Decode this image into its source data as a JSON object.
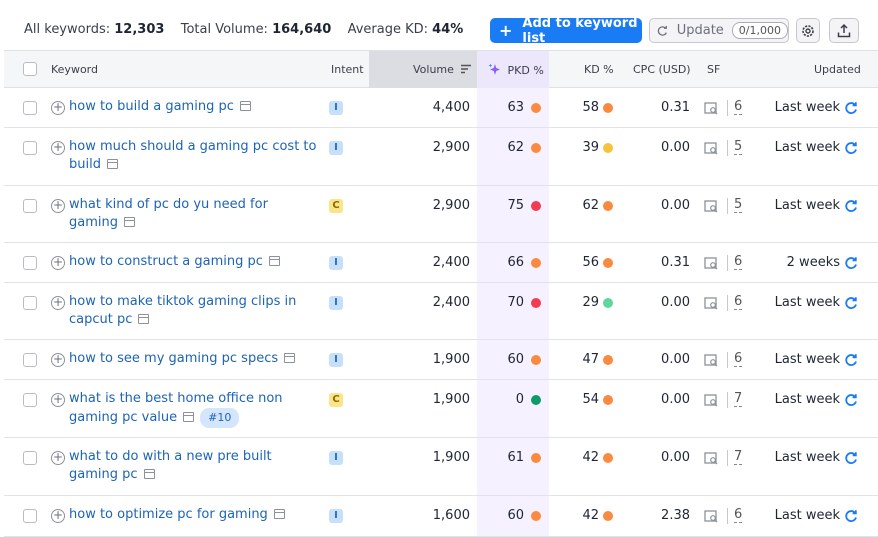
{
  "summary": {
    "all_keywords_label": "All keywords:",
    "all_keywords_value": "12,303",
    "total_volume_label": "Total Volume:",
    "total_volume_value": "164,640",
    "avg_kd_label": "Average KD:",
    "avg_kd_value": "44%"
  },
  "toolbar": {
    "add_label": "Add to keyword list",
    "update_label": "Update",
    "update_count": "0/1,000",
    "settings_icon": "gear-icon",
    "export_icon": "export-icon"
  },
  "columns": {
    "keyword": "Keyword",
    "intent": "Intent",
    "volume": "Volume",
    "pkd": "PKD %",
    "kd": "KD %",
    "cpc": "CPC (USD)",
    "sf": "SF",
    "updated": "Updated"
  },
  "colors": {
    "orange": "#f98a3f",
    "red": "#f23c53",
    "yellow": "#f6c43c",
    "light_green": "#5ed69e",
    "green": "#0d9b6a",
    "link": "#1d64b5",
    "primary": "#1a7cf5"
  },
  "rows": [
    {
      "keyword": "how to build a gaming pc",
      "intent": "I",
      "volume": "4,400",
      "pkd": "63",
      "pkd_color": "#f98a3f",
      "kd": "58",
      "kd_color": "#f98a3f",
      "cpc": "0.31",
      "sf": "6",
      "updated": "Last week"
    },
    {
      "keyword": "how much should a gaming pc cost to build",
      "intent": "I",
      "volume": "2,900",
      "pkd": "62",
      "pkd_color": "#f98a3f",
      "kd": "39",
      "kd_color": "#f6c43c",
      "cpc": "0.00",
      "sf": "5",
      "updated": "Last week"
    },
    {
      "keyword": "what kind of pc do yu need for gaming",
      "intent": "C",
      "volume": "2,900",
      "pkd": "75",
      "pkd_color": "#f23c53",
      "kd": "62",
      "kd_color": "#f98a3f",
      "cpc": "0.00",
      "sf": "5",
      "updated": "Last week"
    },
    {
      "keyword": "how to construct a gaming pc",
      "intent": "I",
      "volume": "2,400",
      "pkd": "66",
      "pkd_color": "#f98a3f",
      "kd": "56",
      "kd_color": "#f98a3f",
      "cpc": "0.31",
      "sf": "6",
      "updated": "2 weeks"
    },
    {
      "keyword": "how to make tiktok gaming clips in capcut pc",
      "intent": "I",
      "volume": "2,400",
      "pkd": "70",
      "pkd_color": "#f23c53",
      "kd": "29",
      "kd_color": "#5ed69e",
      "cpc": "0.00",
      "sf": "6",
      "updated": "Last week"
    },
    {
      "keyword": "how to see my gaming pc specs",
      "intent": "I",
      "volume": "1,900",
      "pkd": "60",
      "pkd_color": "#f98a3f",
      "kd": "47",
      "kd_color": "#f98a3f",
      "cpc": "0.00",
      "sf": "6",
      "updated": "Last week"
    },
    {
      "keyword": "what is the best home office non gaming pc value",
      "intent": "C",
      "volume": "1,900",
      "pkd": "0",
      "pkd_color": "#0d9b6a",
      "kd": "54",
      "kd_color": "#f98a3f",
      "cpc": "0.00",
      "sf": "7",
      "updated": "Last week",
      "badge": "#10"
    },
    {
      "keyword": "what to do with a new pre built gaming pc",
      "intent": "I",
      "volume": "1,900",
      "pkd": "61",
      "pkd_color": "#f98a3f",
      "kd": "42",
      "kd_color": "#f98a3f",
      "cpc": "0.00",
      "sf": "7",
      "updated": "Last week"
    },
    {
      "keyword": "how to optimize pc for gaming",
      "intent": "I",
      "volume": "1,600",
      "pkd": "60",
      "pkd_color": "#f98a3f",
      "kd": "42",
      "kd_color": "#f98a3f",
      "cpc": "2.38",
      "sf": "6",
      "updated": "Last week"
    }
  ]
}
